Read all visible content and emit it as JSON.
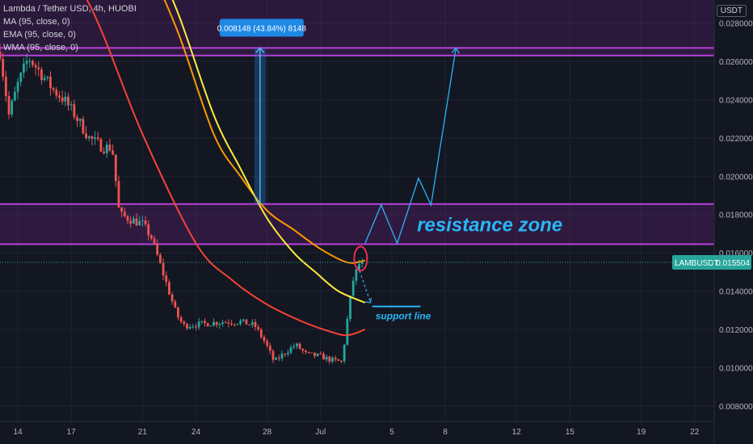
{
  "legend": {
    "title": "Lambda / Tether USD, 4h, HUOBI",
    "ma": "MA (95, close, 0)",
    "ema": "EMA (95, close, 0)",
    "wma": "WMA (95, close, 0)"
  },
  "unit_label": "USDT",
  "price_label": {
    "symbol": "LAMBUSDT",
    "value": "0.015504"
  },
  "annotations": {
    "measure": "0.008148 (43.84%) 8148",
    "resistance": "resistance zone",
    "support": "support line"
  },
  "colors": {
    "background": "#131722",
    "zone": "#9c27b0",
    "up": "#26a69a",
    "down": "#ef5350",
    "ma": "#ffeb3b",
    "ema": "#ff9800",
    "wma": "#f44336",
    "projection": "#29b6f6",
    "label_blue": "#1e88e5",
    "price_label": "#26a69a"
  },
  "chart_data": {
    "type": "candlestick",
    "y_ticks": [
      "0.028000",
      "0.026000",
      "0.024000",
      "0.022000",
      "0.020000",
      "0.018000",
      "0.016000",
      "0.014000",
      "0.012000",
      "0.010000",
      "0.008000"
    ],
    "ylim": [
      0.0072,
      0.0292
    ],
    "x_ticks": [
      "14",
      "17",
      "21",
      "24",
      "28",
      "Jul",
      "5",
      "8",
      "12",
      "15",
      "19",
      "22"
    ],
    "x_tick_days": [
      0,
      3,
      7,
      10,
      14,
      17,
      21,
      24,
      28,
      31,
      35,
      38
    ],
    "xlim": [
      -1.0,
      39.1
    ],
    "last_price": 0.015504,
    "resistance_zones": [
      [
        0.0263,
        0.0267
      ],
      [
        0.01645,
        0.01855
      ]
    ],
    "measure": {
      "day": 13.6,
      "from": 0.01855,
      "to": 0.0267
    },
    "projection_path": [
      [
        19.5,
        0.0165
      ],
      [
        20.4,
        0.0185
      ],
      [
        21.3,
        0.0165
      ],
      [
        22.5,
        0.0199
      ],
      [
        23.2,
        0.0185
      ],
      [
        24.6,
        0.0267
      ]
    ],
    "support_line": {
      "price": 0.0132,
      "from_day": 19.9,
      "to_day": 22.6
    },
    "ma_points": [
      [
        7,
        0.0328
      ],
      [
        9,
        0.0285
      ],
      [
        11,
        0.0232
      ],
      [
        12.5,
        0.0204
      ],
      [
        14,
        0.0178
      ],
      [
        15.5,
        0.016
      ],
      [
        16.7,
        0.015
      ],
      [
        18,
        0.014
      ],
      [
        19.5,
        0.0134
      ]
    ],
    "ema_points": [
      [
        7,
        0.0318
      ],
      [
        9,
        0.0275
      ],
      [
        11,
        0.0222
      ],
      [
        12.5,
        0.02
      ],
      [
        14,
        0.0182
      ],
      [
        15.5,
        0.0172
      ],
      [
        17,
        0.0162
      ],
      [
        18.5,
        0.0155
      ],
      [
        19.5,
        0.0156
      ]
    ],
    "wma_points": [
      [
        1,
        0.033
      ],
      [
        4,
        0.029
      ],
      [
        7,
        0.0222
      ],
      [
        10,
        0.0165
      ],
      [
        12,
        0.0146
      ],
      [
        14,
        0.0133
      ],
      [
        16,
        0.0124
      ],
      [
        17.5,
        0.0119
      ],
      [
        18.5,
        0.0117
      ],
      [
        19.5,
        0.012
      ]
    ],
    "ohlc_anchors": [
      [
        -1.0,
        0.0265
      ],
      [
        -0.5,
        0.0232
      ],
      [
        0,
        0.0248
      ],
      [
        0.6,
        0.0262
      ],
      [
        1.2,
        0.0255
      ],
      [
        2,
        0.0245
      ],
      [
        2.6,
        0.024
      ],
      [
        3.2,
        0.0232
      ],
      [
        4,
        0.022
      ],
      [
        4.8,
        0.0215
      ],
      [
        5.3,
        0.0215
      ],
      [
        5.7,
        0.018
      ],
      [
        6.2,
        0.0178
      ],
      [
        7,
        0.0175
      ],
      [
        7.5,
        0.0168
      ],
      [
        8.2,
        0.0148
      ],
      [
        8.9,
        0.0128
      ],
      [
        9.3,
        0.0122
      ],
      [
        10.5,
        0.0123
      ],
      [
        11.5,
        0.0124
      ],
      [
        12.5,
        0.0124
      ],
      [
        13.3,
        0.0122
      ],
      [
        13.9,
        0.0113
      ],
      [
        14.4,
        0.0103
      ],
      [
        15.0,
        0.0108
      ],
      [
        15.6,
        0.0112
      ],
      [
        16.2,
        0.0107
      ],
      [
        17.0,
        0.0106
      ],
      [
        17.6,
        0.0104
      ],
      [
        18.2,
        0.0103
      ],
      [
        18.5,
        0.0125
      ],
      [
        18.8,
        0.0145
      ],
      [
        19.2,
        0.0155
      ]
    ]
  }
}
